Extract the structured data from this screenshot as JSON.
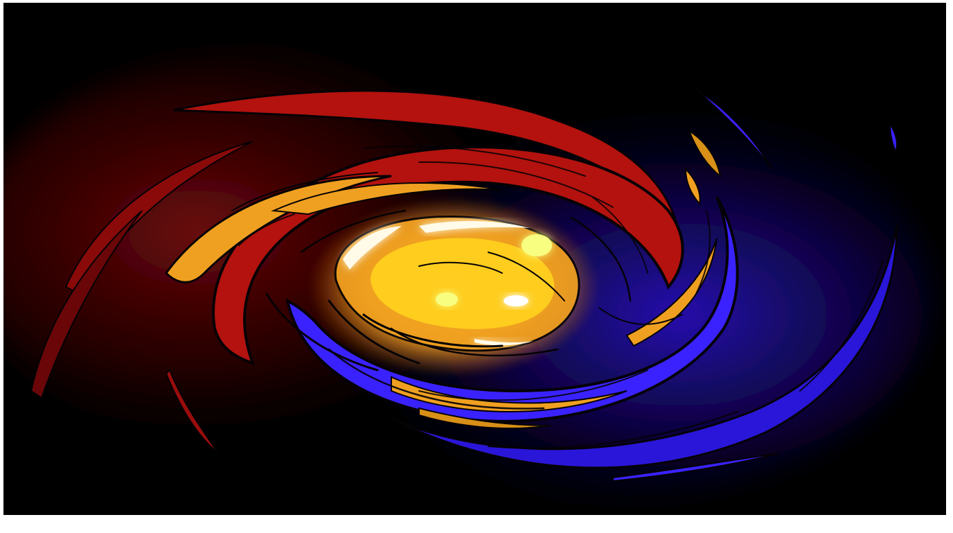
{
  "image": {
    "subject": "swirl-artwork",
    "palette": {
      "background": "#000000",
      "frame": "#ffffff",
      "red_arm": "#b3120e",
      "dark_red": "#5a0508",
      "orange": "#f0a020",
      "yellow": "#ffe640",
      "core_white": "#fffbe8",
      "blue_arm": "#3a22ff",
      "deep_blue": "#1a0a7a",
      "outline": "#050205"
    }
  }
}
